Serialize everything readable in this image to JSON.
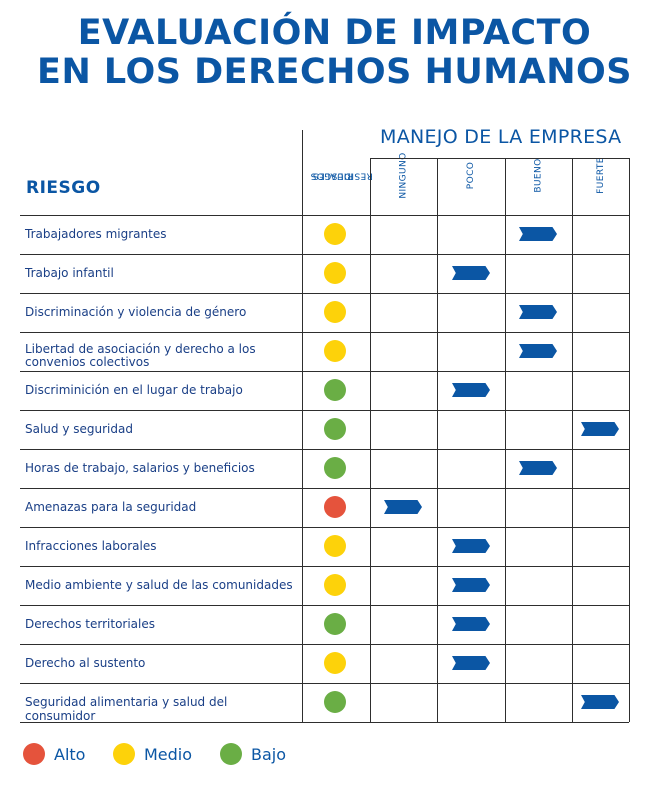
{
  "title": {
    "line1": "EVALUACIÓN DE IMPACTO",
    "line2": "EN LOS DERECHOS HUMANOS"
  },
  "headers": {
    "riesgo": "RIESGO",
    "residual": [
      "RIESGOS",
      "RESIDUALES"
    ],
    "manejo": "MANEJO DE LA EMPRESA",
    "levels": [
      "NINGUNO",
      "POCO",
      "BUENO",
      "FUERTE"
    ]
  },
  "colors": {
    "alto": "#e5533c",
    "medio": "#fdd20a",
    "bajo": "#6aae45",
    "arrow": "#0b56a4"
  },
  "rows": [
    {
      "label": "Trabajadores migrantes",
      "risk": "medio",
      "level": 2
    },
    {
      "label": "Trabajo infantil",
      "risk": "medio",
      "level": 1
    },
    {
      "label": "Discriminación y violencia de género",
      "risk": "medio",
      "level": 2
    },
    {
      "label": "Libertad de asociación y derecho a los convenios colectivos",
      "risk": "medio",
      "level": 2
    },
    {
      "label": "Discriminición en el lugar de trabajo",
      "risk": "bajo",
      "level": 1
    },
    {
      "label": "Salud y seguridad",
      "risk": "bajo",
      "level": 3
    },
    {
      "label": "Horas de trabajo, salarios y beneficios",
      "risk": "bajo",
      "level": 2
    },
    {
      "label": "Amenazas para la seguridad",
      "risk": "alto",
      "level": 0
    },
    {
      "label": "Infracciones laborales",
      "risk": "medio",
      "level": 1
    },
    {
      "label": "Medio ambiente y salud de las comunidades",
      "risk": "medio",
      "level": 1
    },
    {
      "label": "Derechos territoriales",
      "risk": "bajo",
      "level": 1
    },
    {
      "label": "Derecho al sustento",
      "risk": "medio",
      "level": 1
    },
    {
      "label": "Seguridad alimentaria y salud del consumidor",
      "risk": "bajo",
      "level": 3
    }
  ],
  "legend": [
    {
      "key": "alto",
      "label": "Alto"
    },
    {
      "key": "medio",
      "label": "Medio"
    },
    {
      "key": "bajo",
      "label": "Bajo"
    }
  ]
}
